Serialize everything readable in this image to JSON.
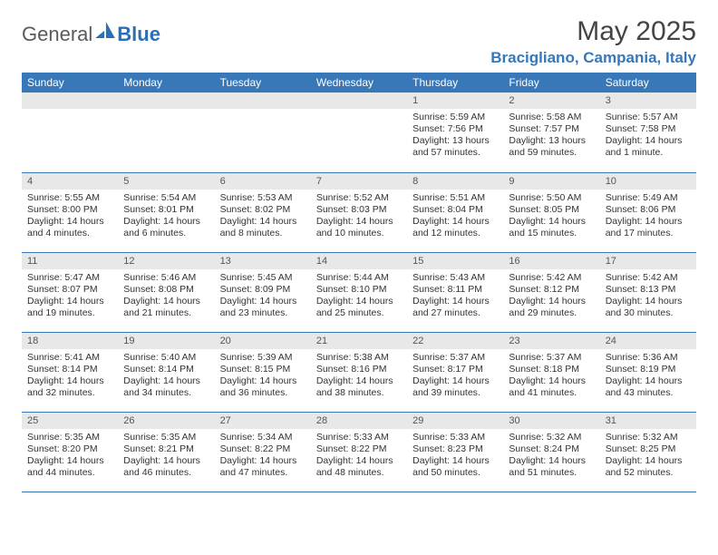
{
  "brand": {
    "part1": "General",
    "part2": "Blue"
  },
  "title": "May 2025",
  "location": "Bracigliano, Campania, Italy",
  "colors": {
    "header_bg": "#3878b8",
    "header_text": "#ffffff",
    "daynum_bg": "#e8e8e8",
    "border": "#3878b8",
    "brand_grey": "#5a5a5a",
    "brand_blue": "#2a6fb5"
  },
  "weekdays": [
    "Sunday",
    "Monday",
    "Tuesday",
    "Wednesday",
    "Thursday",
    "Friday",
    "Saturday"
  ],
  "weeks": [
    [
      {
        "empty": true
      },
      {
        "empty": true
      },
      {
        "empty": true
      },
      {
        "empty": true
      },
      {
        "day": "1",
        "sunrise": "Sunrise: 5:59 AM",
        "sunset": "Sunset: 7:56 PM",
        "daylight": "Daylight: 13 hours and 57 minutes."
      },
      {
        "day": "2",
        "sunrise": "Sunrise: 5:58 AM",
        "sunset": "Sunset: 7:57 PM",
        "daylight": "Daylight: 13 hours and 59 minutes."
      },
      {
        "day": "3",
        "sunrise": "Sunrise: 5:57 AM",
        "sunset": "Sunset: 7:58 PM",
        "daylight": "Daylight: 14 hours and 1 minute."
      }
    ],
    [
      {
        "day": "4",
        "sunrise": "Sunrise: 5:55 AM",
        "sunset": "Sunset: 8:00 PM",
        "daylight": "Daylight: 14 hours and 4 minutes."
      },
      {
        "day": "5",
        "sunrise": "Sunrise: 5:54 AM",
        "sunset": "Sunset: 8:01 PM",
        "daylight": "Daylight: 14 hours and 6 minutes."
      },
      {
        "day": "6",
        "sunrise": "Sunrise: 5:53 AM",
        "sunset": "Sunset: 8:02 PM",
        "daylight": "Daylight: 14 hours and 8 minutes."
      },
      {
        "day": "7",
        "sunrise": "Sunrise: 5:52 AM",
        "sunset": "Sunset: 8:03 PM",
        "daylight": "Daylight: 14 hours and 10 minutes."
      },
      {
        "day": "8",
        "sunrise": "Sunrise: 5:51 AM",
        "sunset": "Sunset: 8:04 PM",
        "daylight": "Daylight: 14 hours and 12 minutes."
      },
      {
        "day": "9",
        "sunrise": "Sunrise: 5:50 AM",
        "sunset": "Sunset: 8:05 PM",
        "daylight": "Daylight: 14 hours and 15 minutes."
      },
      {
        "day": "10",
        "sunrise": "Sunrise: 5:49 AM",
        "sunset": "Sunset: 8:06 PM",
        "daylight": "Daylight: 14 hours and 17 minutes."
      }
    ],
    [
      {
        "day": "11",
        "sunrise": "Sunrise: 5:47 AM",
        "sunset": "Sunset: 8:07 PM",
        "daylight": "Daylight: 14 hours and 19 minutes."
      },
      {
        "day": "12",
        "sunrise": "Sunrise: 5:46 AM",
        "sunset": "Sunset: 8:08 PM",
        "daylight": "Daylight: 14 hours and 21 minutes."
      },
      {
        "day": "13",
        "sunrise": "Sunrise: 5:45 AM",
        "sunset": "Sunset: 8:09 PM",
        "daylight": "Daylight: 14 hours and 23 minutes."
      },
      {
        "day": "14",
        "sunrise": "Sunrise: 5:44 AM",
        "sunset": "Sunset: 8:10 PM",
        "daylight": "Daylight: 14 hours and 25 minutes."
      },
      {
        "day": "15",
        "sunrise": "Sunrise: 5:43 AM",
        "sunset": "Sunset: 8:11 PM",
        "daylight": "Daylight: 14 hours and 27 minutes."
      },
      {
        "day": "16",
        "sunrise": "Sunrise: 5:42 AM",
        "sunset": "Sunset: 8:12 PM",
        "daylight": "Daylight: 14 hours and 29 minutes."
      },
      {
        "day": "17",
        "sunrise": "Sunrise: 5:42 AM",
        "sunset": "Sunset: 8:13 PM",
        "daylight": "Daylight: 14 hours and 30 minutes."
      }
    ],
    [
      {
        "day": "18",
        "sunrise": "Sunrise: 5:41 AM",
        "sunset": "Sunset: 8:14 PM",
        "daylight": "Daylight: 14 hours and 32 minutes."
      },
      {
        "day": "19",
        "sunrise": "Sunrise: 5:40 AM",
        "sunset": "Sunset: 8:14 PM",
        "daylight": "Daylight: 14 hours and 34 minutes."
      },
      {
        "day": "20",
        "sunrise": "Sunrise: 5:39 AM",
        "sunset": "Sunset: 8:15 PM",
        "daylight": "Daylight: 14 hours and 36 minutes."
      },
      {
        "day": "21",
        "sunrise": "Sunrise: 5:38 AM",
        "sunset": "Sunset: 8:16 PM",
        "daylight": "Daylight: 14 hours and 38 minutes."
      },
      {
        "day": "22",
        "sunrise": "Sunrise: 5:37 AM",
        "sunset": "Sunset: 8:17 PM",
        "daylight": "Daylight: 14 hours and 39 minutes."
      },
      {
        "day": "23",
        "sunrise": "Sunrise: 5:37 AM",
        "sunset": "Sunset: 8:18 PM",
        "daylight": "Daylight: 14 hours and 41 minutes."
      },
      {
        "day": "24",
        "sunrise": "Sunrise: 5:36 AM",
        "sunset": "Sunset: 8:19 PM",
        "daylight": "Daylight: 14 hours and 43 minutes."
      }
    ],
    [
      {
        "day": "25",
        "sunrise": "Sunrise: 5:35 AM",
        "sunset": "Sunset: 8:20 PM",
        "daylight": "Daylight: 14 hours and 44 minutes."
      },
      {
        "day": "26",
        "sunrise": "Sunrise: 5:35 AM",
        "sunset": "Sunset: 8:21 PM",
        "daylight": "Daylight: 14 hours and 46 minutes."
      },
      {
        "day": "27",
        "sunrise": "Sunrise: 5:34 AM",
        "sunset": "Sunset: 8:22 PM",
        "daylight": "Daylight: 14 hours and 47 minutes."
      },
      {
        "day": "28",
        "sunrise": "Sunrise: 5:33 AM",
        "sunset": "Sunset: 8:22 PM",
        "daylight": "Daylight: 14 hours and 48 minutes."
      },
      {
        "day": "29",
        "sunrise": "Sunrise: 5:33 AM",
        "sunset": "Sunset: 8:23 PM",
        "daylight": "Daylight: 14 hours and 50 minutes."
      },
      {
        "day": "30",
        "sunrise": "Sunrise: 5:32 AM",
        "sunset": "Sunset: 8:24 PM",
        "daylight": "Daylight: 14 hours and 51 minutes."
      },
      {
        "day": "31",
        "sunrise": "Sunrise: 5:32 AM",
        "sunset": "Sunset: 8:25 PM",
        "daylight": "Daylight: 14 hours and 52 minutes."
      }
    ]
  ]
}
